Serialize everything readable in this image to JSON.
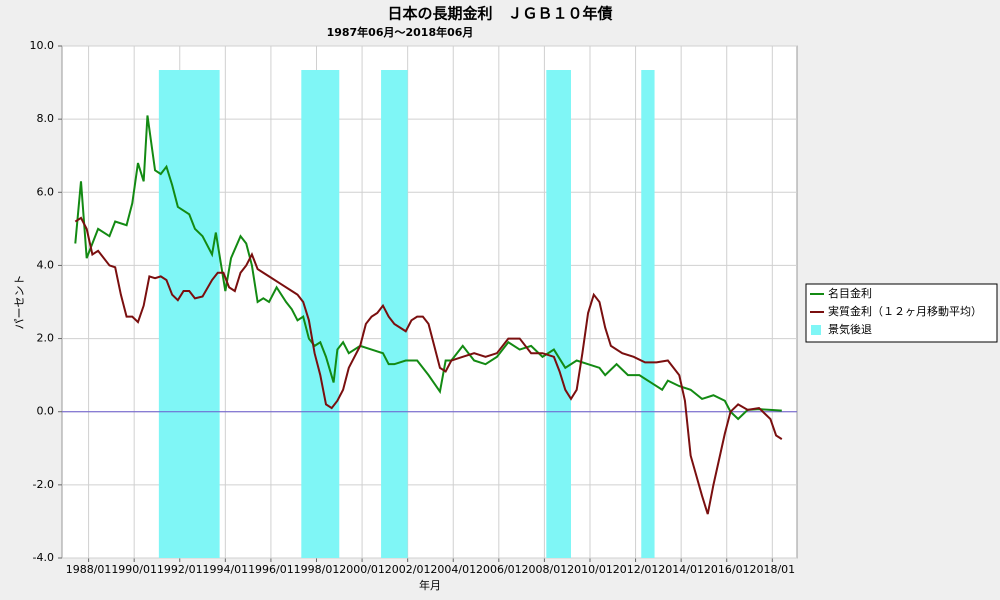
{
  "chart_data": {
    "type": "line",
    "title": "日本の長期金利　ＪＧＢ１０年債",
    "subtitle": "1987年06月～2018年06月",
    "x_label": "年月",
    "y_label": "パーセント",
    "xlim": [
      "1986/11",
      "2019/02"
    ],
    "xticks": [
      "1988/01",
      "1990/01",
      "1992/01",
      "1994/01",
      "1996/01",
      "1998/01",
      "2000/01",
      "2002/01",
      "2004/01",
      "2006/01",
      "2008/01",
      "2010/01",
      "2012/01",
      "2014/01",
      "2016/01",
      "2018/01"
    ],
    "ylim": [
      -4,
      10
    ],
    "yticks": [
      {
        "value": -4,
        "label": "-4.0"
      },
      {
        "value": -2,
        "label": "-2.0"
      },
      {
        "value": 0,
        "label": "0.0"
      },
      {
        "value": 2,
        "label": "2.0"
      },
      {
        "value": 4,
        "label": "4.0"
      },
      {
        "value": 6,
        "label": "6.0"
      },
      {
        "value": 8,
        "label": "8.0"
      },
      {
        "value": 10,
        "label": "10.0"
      }
    ],
    "grid": true,
    "legend": "right",
    "zero_line": true,
    "recession": {
      "name": "景気後退",
      "color": "#7ff6f6",
      "periods": [
        {
          "start": "1991/02",
          "end": "1993/10"
        },
        {
          "start": "1997/05",
          "end": "1999/01"
        },
        {
          "start": "2000/11",
          "end": "2002/01"
        },
        {
          "start": "2008/02",
          "end": "2009/03"
        },
        {
          "start": "2012/04",
          "end": "2012/11"
        }
      ]
    },
    "series": [
      {
        "name": "名目金利",
        "color": "#138a13",
        "x": [
          "1987/06",
          "1987/09",
          "1987/12",
          "1988/06",
          "1988/12",
          "1989/03",
          "1989/09",
          "1989/12",
          "1990/03",
          "1990/06",
          "1990/08",
          "1990/12",
          "1991/03",
          "1991/06",
          "1991/09",
          "1991/12",
          "1992/06",
          "1992/09",
          "1993/01",
          "1993/06",
          "1993/08",
          "1994/01",
          "1994/04",
          "1994/09",
          "1994/12",
          "1995/03",
          "1995/06",
          "1995/09",
          "1995/12",
          "1996/04",
          "1996/09",
          "1996/12",
          "1997/03",
          "1997/06",
          "1997/09",
          "1997/12",
          "1998/03",
          "1998/06",
          "1998/10",
          "1998/12",
          "1999/03",
          "1999/06",
          "1999/12",
          "2000/06",
          "2000/12",
          "2001/03",
          "2001/06",
          "2001/12",
          "2002/06",
          "2002/12",
          "2003/06",
          "2003/09",
          "2003/12",
          "2004/06",
          "2004/12",
          "2005/06",
          "2005/12",
          "2006/06",
          "2006/12",
          "2007/06",
          "2007/12",
          "2008/06",
          "2008/12",
          "2009/06",
          "2009/12",
          "2010/06",
          "2010/09",
          "2011/03",
          "2011/09",
          "2012/03",
          "2012/09",
          "2013/03",
          "2013/06",
          "2013/12",
          "2014/06",
          "2014/12",
          "2015/06",
          "2015/12",
          "2016/03",
          "2016/07",
          "2016/12",
          "2017/06",
          "2017/12",
          "2018/06"
        ],
        "values": [
          4.6,
          6.3,
          4.2,
          5.0,
          4.8,
          5.2,
          5.1,
          5.7,
          6.8,
          6.3,
          8.1,
          6.6,
          6.5,
          6.7,
          6.2,
          5.6,
          5.4,
          5.0,
          4.8,
          4.3,
          4.9,
          3.3,
          4.2,
          4.8,
          4.6,
          4.0,
          3.0,
          3.1,
          3.0,
          3.4,
          3.0,
          2.8,
          2.5,
          2.6,
          2.0,
          1.8,
          1.9,
          1.5,
          0.8,
          1.7,
          1.9,
          1.6,
          1.8,
          1.7,
          1.6,
          1.3,
          1.3,
          1.4,
          1.4,
          1.0,
          0.55,
          1.4,
          1.4,
          1.8,
          1.4,
          1.3,
          1.5,
          1.9,
          1.7,
          1.8,
          1.5,
          1.7,
          1.2,
          1.4,
          1.3,
          1.2,
          1.0,
          1.3,
          1.0,
          1.0,
          0.8,
          0.6,
          0.85,
          0.7,
          0.6,
          0.35,
          0.45,
          0.3,
          0.0,
          -0.2,
          0.05,
          0.07,
          0.05,
          0.03
        ]
      },
      {
        "name": "実質金利（１２ヶ月移動平均）",
        "color": "#7a0f0f",
        "x": [
          "1987/06",
          "1987/09",
          "1987/12",
          "1988/03",
          "1988/06",
          "1988/12",
          "1989/03",
          "1989/06",
          "1989/09",
          "1989/12",
          "1990/03",
          "1990/06",
          "1990/09",
          "1990/12",
          "1991/03",
          "1991/06",
          "1991/09",
          "1991/12",
          "1992/03",
          "1992/06",
          "1992/09",
          "1993/01",
          "1993/06",
          "1993/09",
          "1993/12",
          "1994/03",
          "1994/06",
          "1994/09",
          "1994/12",
          "1995/03",
          "1995/06",
          "1995/09",
          "1995/12",
          "1996/06",
          "1996/12",
          "1997/03",
          "1997/06",
          "1997/09",
          "1997/12",
          "1998/03",
          "1998/06",
          "1998/09",
          "1998/12",
          "1999/03",
          "1999/06",
          "1999/12",
          "2000/03",
          "2000/06",
          "2000/09",
          "2000/12",
          "2001/03",
          "2001/06",
          "2001/09",
          "2001/12",
          "2002/03",
          "2002/06",
          "2002/09",
          "2002/12",
          "2003/03",
          "2003/06",
          "2003/09",
          "2003/12",
          "2004/06",
          "2004/12",
          "2005/06",
          "2005/12",
          "2006/06",
          "2006/12",
          "2007/06",
          "2007/12",
          "2008/06",
          "2008/09",
          "2008/12",
          "2009/03",
          "2009/06",
          "2009/09",
          "2009/12",
          "2010/03",
          "2010/06",
          "2010/09",
          "2010/12",
          "2011/06",
          "2011/12",
          "2012/06",
          "2012/12",
          "2013/06",
          "2013/12",
          "2014/03",
          "2014/06",
          "2014/12",
          "2015/03",
          "2015/06",
          "2015/12",
          "2016/03",
          "2016/07",
          "2016/12",
          "2017/06",
          "2017/12",
          "2018/03",
          "2018/06"
        ],
        "values": [
          5.2,
          5.3,
          5.0,
          4.3,
          4.4,
          4.0,
          3.95,
          3.2,
          2.6,
          2.6,
          2.45,
          2.9,
          3.7,
          3.65,
          3.7,
          3.6,
          3.2,
          3.05,
          3.3,
          3.3,
          3.1,
          3.15,
          3.6,
          3.8,
          3.8,
          3.4,
          3.3,
          3.8,
          4.0,
          4.3,
          3.9,
          3.8,
          3.7,
          3.5,
          3.3,
          3.2,
          3.0,
          2.5,
          1.6,
          1.0,
          0.2,
          0.1,
          0.3,
          0.6,
          1.2,
          1.8,
          2.4,
          2.6,
          2.7,
          2.9,
          2.6,
          2.4,
          2.3,
          2.2,
          2.5,
          2.6,
          2.6,
          2.4,
          1.8,
          1.2,
          1.1,
          1.4,
          1.5,
          1.6,
          1.5,
          1.6,
          2.0,
          2.0,
          1.6,
          1.6,
          1.5,
          1.1,
          0.6,
          0.35,
          0.6,
          1.6,
          2.7,
          3.2,
          3.0,
          2.3,
          1.8,
          1.6,
          1.5,
          1.35,
          1.35,
          1.4,
          1.0,
          0.3,
          -1.2,
          -2.3,
          -2.8,
          -2.0,
          -0.6,
          0.0,
          0.2,
          0.05,
          0.1,
          -0.2,
          -0.65,
          -0.75
        ]
      }
    ]
  }
}
